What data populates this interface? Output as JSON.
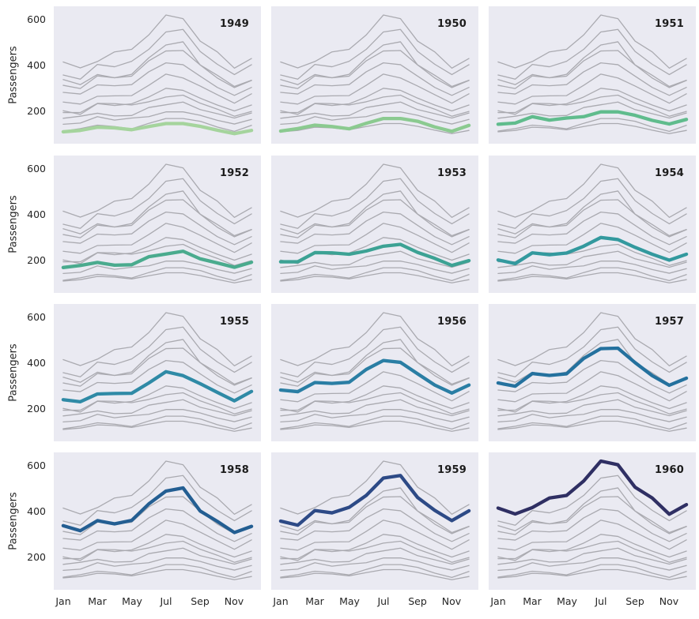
{
  "figure": {
    "ylabel": "Passengers",
    "background_color": "#ffffff",
    "facet_background_color": "#eaeaf2",
    "gray_line_color": "#aaaab0",
    "text_color": "#262626",
    "year_label_color": "#1c1c1c"
  },
  "chart_data": {
    "type": "line",
    "title": "",
    "xlabel": "",
    "ylabel": "Passengers",
    "x": [
      "Jan",
      "Feb",
      "Mar",
      "Apr",
      "May",
      "Jun",
      "Jul",
      "Aug",
      "Sep",
      "Oct",
      "Nov",
      "Dec"
    ],
    "x_tick_labels": [
      "Jan",
      "Mar",
      "May",
      "Jul",
      "Sep",
      "Nov"
    ],
    "x_tick_month_indices": [
      0,
      2,
      4,
      6,
      8,
      10
    ],
    "y_ticks": [
      200,
      400,
      600
    ],
    "ylim": [
      60,
      660
    ],
    "grid": false,
    "legend": false,
    "layout": {
      "rows": 4,
      "cols": 3,
      "col_wrap": 3,
      "facet_title_position": "top-right"
    },
    "series": [
      {
        "name": "1949",
        "values": [
          112,
          118,
          132,
          129,
          121,
          135,
          148,
          148,
          136,
          119,
          104,
          118
        ]
      },
      {
        "name": "1950",
        "values": [
          115,
          126,
          141,
          135,
          125,
          149,
          170,
          170,
          158,
          133,
          114,
          140
        ]
      },
      {
        "name": "1951",
        "values": [
          145,
          150,
          178,
          163,
          172,
          178,
          199,
          199,
          184,
          162,
          146,
          166
        ]
      },
      {
        "name": "1952",
        "values": [
          171,
          180,
          193,
          181,
          183,
          218,
          230,
          242,
          209,
          191,
          172,
          194
        ]
      },
      {
        "name": "1953",
        "values": [
          196,
          196,
          236,
          235,
          229,
          243,
          264,
          272,
          237,
          211,
          180,
          201
        ]
      },
      {
        "name": "1954",
        "values": [
          204,
          188,
          235,
          227,
          234,
          264,
          302,
          293,
          259,
          229,
          203,
          229
        ]
      },
      {
        "name": "1955",
        "values": [
          242,
          233,
          267,
          269,
          270,
          315,
          364,
          347,
          312,
          274,
          237,
          278
        ]
      },
      {
        "name": "1956",
        "values": [
          284,
          277,
          317,
          313,
          318,
          374,
          413,
          405,
          355,
          306,
          271,
          306
        ]
      },
      {
        "name": "1957",
        "values": [
          315,
          301,
          356,
          348,
          355,
          422,
          465,
          467,
          404,
          347,
          305,
          336
        ]
      },
      {
        "name": "1958",
        "values": [
          340,
          318,
          362,
          348,
          363,
          435,
          491,
          505,
          404,
          359,
          310,
          337
        ]
      },
      {
        "name": "1959",
        "values": [
          360,
          342,
          406,
          396,
          420,
          472,
          548,
          559,
          463,
          407,
          362,
          405
        ]
      },
      {
        "name": "1960",
        "values": [
          417,
          391,
          419,
          461,
          472,
          535,
          622,
          606,
          508,
          461,
          390,
          432
        ]
      }
    ],
    "facets": [
      {
        "year": "1949",
        "color": "#a5d49d"
      },
      {
        "year": "1950",
        "color": "#8bca90"
      },
      {
        "year": "1951",
        "color": "#60bc8d"
      },
      {
        "year": "1952",
        "color": "#4aab8e"
      },
      {
        "year": "1953",
        "color": "#3ca294"
      },
      {
        "year": "1954",
        "color": "#33999e"
      },
      {
        "year": "1955",
        "color": "#2f8aa6"
      },
      {
        "year": "1956",
        "color": "#2a7ea4"
      },
      {
        "year": "1957",
        "color": "#24719e"
      },
      {
        "year": "1958",
        "color": "#235e92"
      },
      {
        "year": "1959",
        "color": "#2d4a86"
      },
      {
        "year": "1960",
        "color": "#2f2f63"
      }
    ]
  }
}
